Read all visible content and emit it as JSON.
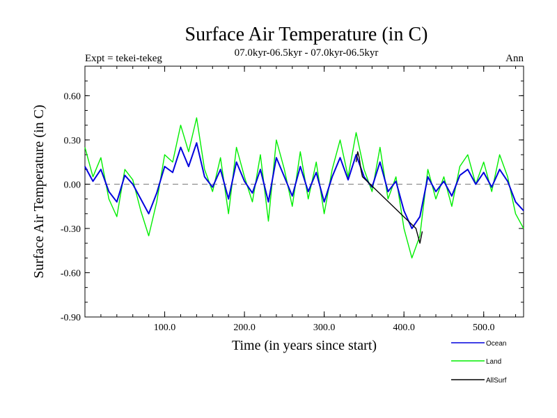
{
  "chart_data": {
    "type": "line",
    "title": "Surface Air Temperature (in C)",
    "subtitle": "07.0kyr-06.5kyr - 07.0kyr-06.5kyr",
    "left_label": "Expt = tekei-tekeg",
    "right_label": "Ann",
    "xlabel": "Time (in years since start)",
    "ylabel": "Surface Air Temperature (in C)",
    "xlim": [
      0,
      550
    ],
    "ylim": [
      -0.9,
      0.8
    ],
    "xticks": [
      {
        "value": 100,
        "label": "100.0"
      },
      {
        "value": 200,
        "label": "200.0"
      },
      {
        "value": 300,
        "label": "300.0"
      },
      {
        "value": 400,
        "label": "400.0"
      },
      {
        "value": 500,
        "label": "500.0"
      }
    ],
    "yticks": [
      {
        "value": 0.6,
        "label": "0.60"
      },
      {
        "value": 0.3,
        "label": "0.30"
      },
      {
        "value": 0.0,
        "label": "0.00"
      },
      {
        "value": -0.3,
        "label": "-0.30"
      },
      {
        "value": -0.6,
        "label": "-0.60"
      },
      {
        "value": -0.9,
        "label": "-0.90"
      }
    ],
    "zero_line": 0.0,
    "series": [
      {
        "name": "Land",
        "color": "#00ee00",
        "x": [
          0,
          10,
          20,
          30,
          40,
          50,
          60,
          70,
          80,
          90,
          100,
          110,
          120,
          130,
          140,
          150,
          160,
          170,
          180,
          190,
          200,
          210,
          220,
          230,
          240,
          250,
          260,
          270,
          280,
          290,
          300,
          310,
          320,
          330,
          340,
          350,
          360,
          370,
          380,
          390,
          400,
          410,
          420,
          430,
          440,
          450,
          460,
          470,
          480,
          490,
          500,
          510,
          520,
          530,
          540,
          550
        ],
        "values": [
          0.25,
          0.05,
          0.18,
          -0.1,
          -0.22,
          0.1,
          0.03,
          -0.18,
          -0.35,
          -0.12,
          0.2,
          0.15,
          0.4,
          0.22,
          0.45,
          0.1,
          -0.05,
          0.18,
          -0.2,
          0.25,
          0.05,
          -0.12,
          0.2,
          -0.25,
          0.3,
          0.1,
          -0.15,
          0.22,
          -0.1,
          0.15,
          -0.2,
          0.1,
          0.3,
          0.05,
          0.35,
          0.1,
          -0.05,
          0.25,
          -0.1,
          0.05,
          -0.3,
          -0.5,
          -0.35,
          0.1,
          -0.1,
          0.05,
          -0.15,
          0.12,
          0.2,
          0.0,
          0.15,
          -0.05,
          0.2,
          0.05,
          -0.2,
          -0.3
        ]
      },
      {
        "name": "Ocean",
        "color": "#0000dd",
        "x": [
          0,
          10,
          20,
          30,
          40,
          50,
          60,
          70,
          80,
          90,
          100,
          110,
          120,
          130,
          140,
          150,
          160,
          170,
          180,
          190,
          200,
          210,
          220,
          230,
          240,
          250,
          260,
          270,
          280,
          290,
          300,
          310,
          320,
          330,
          340,
          350,
          360,
          370,
          380,
          390,
          400,
          410,
          420,
          430,
          440,
          450,
          460,
          470,
          480,
          490,
          500,
          510,
          520,
          530,
          540,
          550
        ],
        "values": [
          0.12,
          0.02,
          0.1,
          -0.05,
          -0.12,
          0.06,
          0.0,
          -0.1,
          -0.2,
          -0.06,
          0.12,
          0.08,
          0.25,
          0.12,
          0.28,
          0.05,
          -0.02,
          0.1,
          -0.1,
          0.15,
          0.02,
          -0.06,
          0.1,
          -0.12,
          0.18,
          0.05,
          -0.08,
          0.12,
          -0.05,
          0.08,
          -0.12,
          0.05,
          0.18,
          0.03,
          0.2,
          0.05,
          -0.02,
          0.15,
          -0.05,
          0.02,
          -0.18,
          -0.3,
          -0.22,
          0.05,
          -0.05,
          0.02,
          -0.08,
          0.06,
          0.1,
          0.0,
          0.08,
          -0.02,
          0.1,
          0.02,
          -0.12,
          -0.18
        ]
      },
      {
        "name": "AllSurf",
        "color": "#000000",
        "x": [
          340,
          342,
          344,
          346,
          348,
          415,
          418,
          420,
          423
        ],
        "values": [
          0.15,
          0.22,
          0.18,
          0.1,
          0.05,
          -0.3,
          -0.36,
          -0.4,
          -0.32
        ]
      }
    ],
    "legend": {
      "placement": "bottom-right",
      "entries": [
        {
          "name": "Ocean",
          "color": "#0000dd"
        },
        {
          "name": "Land",
          "color": "#00ee00"
        },
        {
          "name": "AllSurf",
          "color": "#000000"
        }
      ]
    }
  }
}
